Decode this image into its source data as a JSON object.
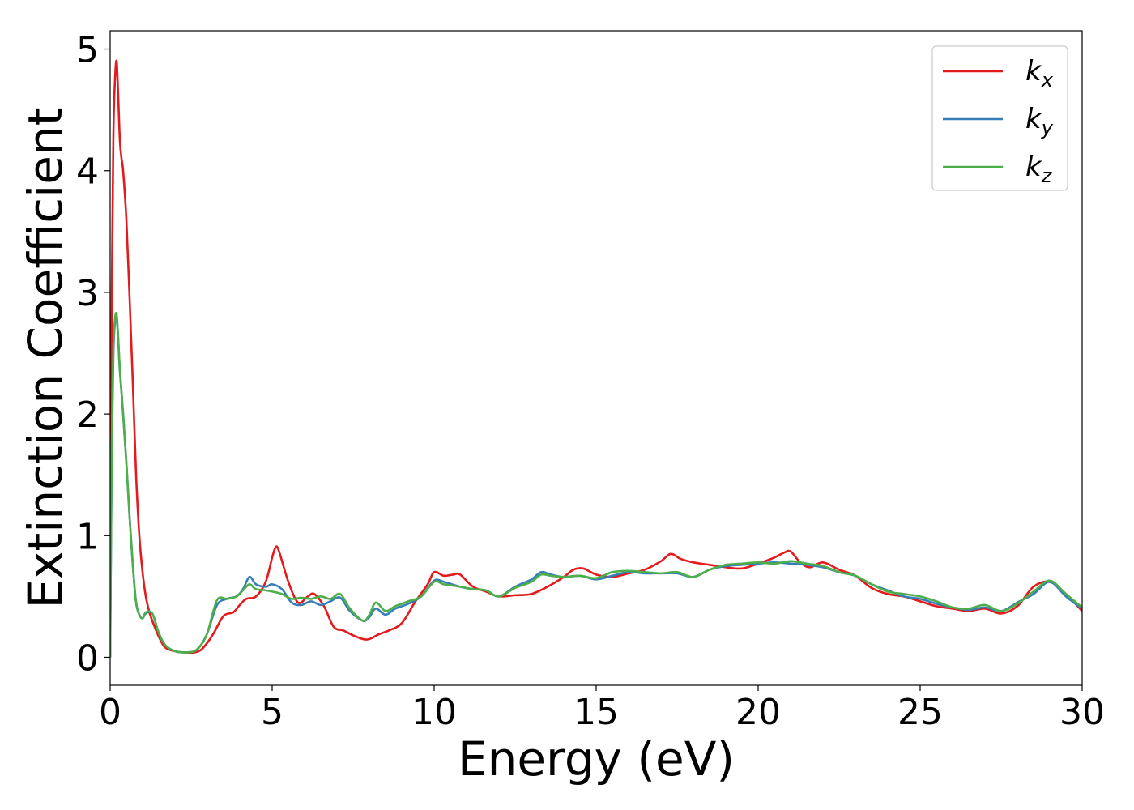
{
  "chart_data": {
    "type": "line",
    "title": "",
    "xlabel": "Energy (eV)",
    "ylabel": "Extinction Coefficient",
    "xlim": [
      0,
      30
    ],
    "ylim": [
      -0.23,
      5.15
    ],
    "xticks": [
      0,
      5,
      10,
      15,
      20,
      25,
      30
    ],
    "yticks": [
      0,
      1,
      2,
      3,
      4,
      5
    ],
    "grid": false,
    "legend_position": "top-right",
    "series": [
      {
        "name": "k",
        "subscript": "x",
        "color": "#e41a1c",
        "x": [
          0,
          0.05,
          0.1,
          0.15,
          0.2,
          0.25,
          0.3,
          0.35,
          0.4,
          0.5,
          0.6,
          0.7,
          0.8,
          0.9,
          1.0,
          1.1,
          1.2,
          1.3,
          1.5,
          1.7,
          2.0,
          2.3,
          2.6,
          2.8,
          3.0,
          3.2,
          3.5,
          3.8,
          4.0,
          4.2,
          4.5,
          4.8,
          5.0,
          5.1,
          5.2,
          5.5,
          5.8,
          6.1,
          6.3,
          6.6,
          6.9,
          7.2,
          7.5,
          7.8,
          8.0,
          8.3,
          8.6,
          9.0,
          9.4,
          9.8,
          10.0,
          10.3,
          10.6,
          10.8,
          11.2,
          11.6,
          12.0,
          12.5,
          13.0,
          13.5,
          14.0,
          14.3,
          14.6,
          15.0,
          15.5,
          16.0,
          16.5,
          17.0,
          17.3,
          17.6,
          18.0,
          18.5,
          19.0,
          19.5,
          20.0,
          20.5,
          20.8,
          21.0,
          21.3,
          21.6,
          22.0,
          22.5,
          23.0,
          23.5,
          24.0,
          24.5,
          25.0,
          25.5,
          26.0,
          26.5,
          27.0,
          27.5,
          28.0,
          28.5,
          29.0,
          29.5,
          30.0
        ],
        "y": [
          0.0,
          3.0,
          4.3,
          4.75,
          4.9,
          4.6,
          4.25,
          4.1,
          4.0,
          3.6,
          2.95,
          2.25,
          1.5,
          1.0,
          0.7,
          0.5,
          0.38,
          0.3,
          0.17,
          0.08,
          0.05,
          0.04,
          0.04,
          0.06,
          0.12,
          0.2,
          0.34,
          0.37,
          0.43,
          0.48,
          0.5,
          0.62,
          0.82,
          0.9,
          0.88,
          0.62,
          0.45,
          0.5,
          0.52,
          0.42,
          0.25,
          0.22,
          0.18,
          0.15,
          0.15,
          0.19,
          0.22,
          0.28,
          0.45,
          0.6,
          0.7,
          0.67,
          0.68,
          0.68,
          0.58,
          0.54,
          0.5,
          0.51,
          0.52,
          0.58,
          0.66,
          0.72,
          0.73,
          0.68,
          0.66,
          0.69,
          0.72,
          0.79,
          0.85,
          0.81,
          0.78,
          0.76,
          0.74,
          0.73,
          0.77,
          0.82,
          0.86,
          0.87,
          0.78,
          0.74,
          0.78,
          0.72,
          0.67,
          0.57,
          0.52,
          0.5,
          0.46,
          0.42,
          0.4,
          0.38,
          0.4,
          0.36,
          0.42,
          0.58,
          0.62,
          0.52,
          0.38
        ]
      },
      {
        "name": "k",
        "subscript": "y",
        "color": "#377eb8",
        "x": [
          0,
          0.05,
          0.1,
          0.15,
          0.2,
          0.25,
          0.3,
          0.4,
          0.5,
          0.6,
          0.7,
          0.8,
          0.9,
          1.0,
          1.1,
          1.3,
          1.5,
          1.7,
          2.0,
          2.3,
          2.6,
          2.8,
          3.0,
          3.3,
          3.6,
          3.9,
          4.1,
          4.3,
          4.5,
          4.8,
          5.0,
          5.3,
          5.6,
          5.9,
          6.2,
          6.5,
          6.8,
          7.1,
          7.4,
          7.8,
          8.0,
          8.2,
          8.5,
          8.8,
          9.2,
          9.6,
          10.0,
          10.3,
          10.8,
          11.2,
          11.6,
          12.0,
          12.5,
          13.0,
          13.3,
          13.6,
          14.0,
          14.5,
          15.0,
          15.5,
          16.0,
          16.5,
          17.0,
          17.5,
          18.0,
          18.5,
          19.0,
          19.5,
          20.0,
          20.5,
          21.0,
          21.5,
          22.0,
          22.5,
          23.0,
          23.5,
          24.0,
          24.5,
          25.0,
          25.5,
          26.0,
          26.5,
          27.0,
          27.5,
          28.0,
          28.5,
          29.0,
          29.5,
          30.0
        ],
        "y": [
          0.0,
          1.7,
          2.5,
          2.75,
          2.8,
          2.6,
          2.35,
          2.0,
          1.6,
          1.15,
          0.75,
          0.45,
          0.35,
          0.32,
          0.36,
          0.36,
          0.2,
          0.1,
          0.05,
          0.04,
          0.05,
          0.1,
          0.2,
          0.43,
          0.48,
          0.5,
          0.56,
          0.66,
          0.6,
          0.58,
          0.6,
          0.56,
          0.45,
          0.43,
          0.46,
          0.43,
          0.46,
          0.49,
          0.38,
          0.3,
          0.33,
          0.4,
          0.35,
          0.4,
          0.44,
          0.5,
          0.63,
          0.62,
          0.58,
          0.56,
          0.55,
          0.5,
          0.58,
          0.64,
          0.7,
          0.68,
          0.66,
          0.67,
          0.64,
          0.67,
          0.7,
          0.69,
          0.69,
          0.69,
          0.66,
          0.72,
          0.75,
          0.76,
          0.77,
          0.78,
          0.77,
          0.76,
          0.74,
          0.7,
          0.67,
          0.6,
          0.55,
          0.5,
          0.48,
          0.44,
          0.41,
          0.39,
          0.41,
          0.38,
          0.45,
          0.52,
          0.62,
          0.5,
          0.4
        ]
      },
      {
        "name": "k",
        "subscript": "z",
        "color": "#4daf4a",
        "x": [
          0,
          0.05,
          0.1,
          0.15,
          0.2,
          0.25,
          0.3,
          0.4,
          0.5,
          0.6,
          0.7,
          0.8,
          0.9,
          1.0,
          1.1,
          1.3,
          1.5,
          1.7,
          2.0,
          2.3,
          2.6,
          2.8,
          3.0,
          3.3,
          3.6,
          3.9,
          4.1,
          4.3,
          4.5,
          4.8,
          5.0,
          5.3,
          5.6,
          5.9,
          6.2,
          6.5,
          6.8,
          7.1,
          7.4,
          7.8,
          8.0,
          8.2,
          8.5,
          8.8,
          9.2,
          9.6,
          10.0,
          10.3,
          10.8,
          11.2,
          11.6,
          12.0,
          12.5,
          13.0,
          13.3,
          13.6,
          14.0,
          14.5,
          15.0,
          15.5,
          16.0,
          16.5,
          17.0,
          17.5,
          18.0,
          18.5,
          19.0,
          19.5,
          20.0,
          20.5,
          21.0,
          21.5,
          22.0,
          22.5,
          23.0,
          23.5,
          24.0,
          24.5,
          25.0,
          25.5,
          26.0,
          26.5,
          27.0,
          27.5,
          28.0,
          28.5,
          29.0,
          29.5,
          30.0
        ],
        "y": [
          0.0,
          1.75,
          2.55,
          2.78,
          2.82,
          2.62,
          2.37,
          2.0,
          1.6,
          1.15,
          0.75,
          0.45,
          0.35,
          0.32,
          0.37,
          0.36,
          0.2,
          0.1,
          0.05,
          0.04,
          0.05,
          0.1,
          0.2,
          0.47,
          0.48,
          0.5,
          0.55,
          0.6,
          0.56,
          0.55,
          0.54,
          0.52,
          0.48,
          0.49,
          0.48,
          0.5,
          0.48,
          0.52,
          0.4,
          0.3,
          0.35,
          0.45,
          0.38,
          0.42,
          0.46,
          0.5,
          0.62,
          0.6,
          0.58,
          0.56,
          0.55,
          0.5,
          0.57,
          0.62,
          0.68,
          0.67,
          0.66,
          0.67,
          0.65,
          0.7,
          0.71,
          0.7,
          0.69,
          0.7,
          0.66,
          0.72,
          0.76,
          0.77,
          0.78,
          0.77,
          0.79,
          0.77,
          0.75,
          0.7,
          0.67,
          0.6,
          0.54,
          0.52,
          0.5,
          0.46,
          0.41,
          0.4,
          0.43,
          0.38,
          0.44,
          0.54,
          0.63,
          0.52,
          0.41
        ]
      }
    ]
  }
}
